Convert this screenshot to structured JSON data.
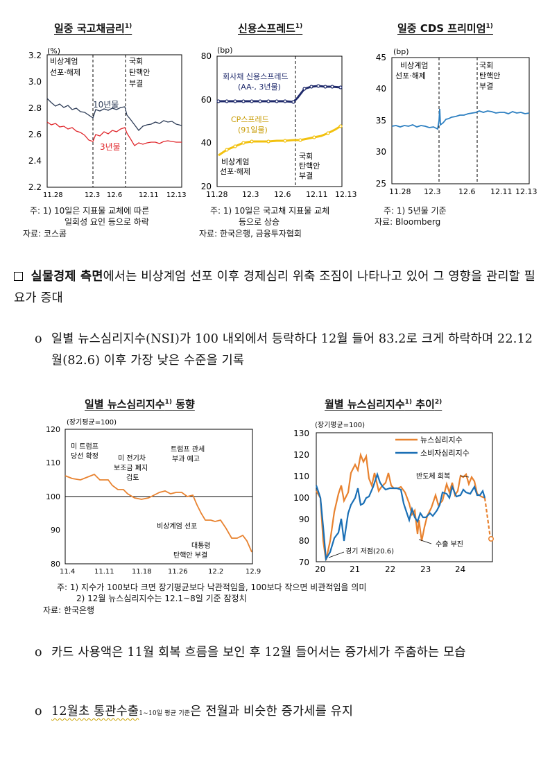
{
  "charts": {
    "bond": {
      "title": "일중 국고채금리",
      "title_sup": "1)",
      "unit": "(%)",
      "yticks": [
        "3.2",
        "3.0",
        "2.8",
        "2.6",
        "2.4",
        "2.2"
      ],
      "xticks": [
        "11.28",
        "12.3",
        "12.6",
        "12.11",
        "12.13"
      ],
      "ann_left": [
        "비상계엄",
        "선포·해제"
      ],
      "ann_right": [
        "국회",
        "탄핵안",
        "부결"
      ],
      "series_labels": [
        "10년물",
        "3년물"
      ],
      "notes": [
        "주: 1) 10일은 지표물 교체에 따른",
        "일회성 요인 등으로 하락",
        "자료: 코스콤"
      ]
    },
    "credit": {
      "title": "신용스프레드",
      "title_sup": "1)",
      "unit": "(bp)",
      "yticks": [
        "80",
        "60",
        "40",
        "20"
      ],
      "xticks": [
        "11.28",
        "12.3",
        "12.6",
        "12.11",
        "12.13"
      ],
      "series_labels": [
        "회사채 신용스프레드",
        "(AA-, 3년물)",
        "CP스프레드",
        "(91일물)"
      ],
      "ann_left": [
        "비상계엄",
        "선포·해제"
      ],
      "ann_right": [
        "국회",
        "탄핵안",
        "부결"
      ],
      "notes": [
        "주: 1) 10일은 국고채 지표물 교체",
        "등으로 상승",
        "자료: 한국은행, 금융투자협회"
      ]
    },
    "cds": {
      "title": "일중 CDS 프리미엄",
      "title_sup": "1)",
      "unit": "(bp)",
      "yticks": [
        "45",
        "40",
        "35",
        "30",
        "25"
      ],
      "xticks": [
        "11.28",
        "12.3",
        "12.6",
        "12.11",
        "12.13"
      ],
      "ann_left": [
        "비상계엄",
        "선포·해제"
      ],
      "ann_right": [
        "국회",
        "탄핵안",
        "부결"
      ],
      "notes": [
        "주: 1) 5년물 기준",
        "자료: Bloomberg"
      ]
    },
    "nsi_daily": {
      "title": "일별 뉴스심리지수",
      "title_sup": "1)",
      "title_tail": " 동향",
      "unit": "(장기평균=100)",
      "yticks": [
        "120",
        "110",
        "100",
        "90",
        "80"
      ],
      "xticks": [
        "11.4",
        "11.11",
        "11.18",
        "11.26",
        "12.2",
        "12.9"
      ],
      "annotations": [
        "미 트럼프",
        "당선 확정",
        "미 전기차",
        "보조금 폐지",
        "검토",
        "트럼프 관세",
        "부과 예고",
        "비상계엄 선포",
        "대통령",
        "탄핵안 부결"
      ]
    },
    "nsi_monthly": {
      "title": "월별 뉴스심리지수",
      "title_sup": "1)",
      "title_tail": " 추이",
      "title_sup2": "2)",
      "unit": "(장기평균=100)",
      "yticks": [
        "130",
        "120",
        "110",
        "100",
        "90",
        "80",
        "70"
      ],
      "xticks": [
        "20",
        "21",
        "22",
        "23",
        "24"
      ],
      "legend": [
        "뉴스심리지수",
        "소비자심리지수"
      ],
      "annotations": [
        "반도체 회복",
        "수출 부진",
        "경기 저점(20.6)"
      ]
    }
  },
  "chart_data": [
    {
      "type": "line",
      "title": "일중 국고채금리",
      "ylabel": "(%)",
      "ylim": [
        2.2,
        3.2
      ],
      "categories": [
        "11.28",
        "12.3",
        "12.6",
        "12.11",
        "12.13"
      ],
      "series": [
        {
          "name": "10년물",
          "values": [
            2.84,
            2.78,
            2.74,
            2.72,
            2.7
          ]
        },
        {
          "name": "3년물",
          "values": [
            2.66,
            2.58,
            2.6,
            2.56,
            2.55
          ]
        }
      ]
    },
    {
      "type": "line",
      "title": "신용스프레드",
      "ylabel": "(bp)",
      "ylim": [
        20,
        80
      ],
      "categories": [
        "11.28",
        "12.3",
        "12.6",
        "12.11",
        "12.13"
      ],
      "series": [
        {
          "name": "회사채 신용스프레드 (AA-, 3년물)",
          "values": [
            59,
            59,
            59,
            65,
            65
          ]
        },
        {
          "name": "CP스프레드 (91일물)",
          "values": [
            34,
            40,
            41,
            42,
            47
          ]
        }
      ]
    },
    {
      "type": "line",
      "title": "일중 CDS 프리미엄",
      "ylabel": "(bp)",
      "ylim": [
        25,
        45
      ],
      "categories": [
        "11.28",
        "12.3",
        "12.6",
        "12.11",
        "12.13"
      ],
      "series": [
        {
          "values": [
            34.0,
            34.3,
            35.8,
            36.3,
            35.9
          ]
        }
      ]
    },
    {
      "type": "line",
      "title": "일별 뉴스심리지수 동향",
      "ylabel": "(장기평균=100)",
      "ylim": [
        80,
        120
      ],
      "categories": [
        "11.4",
        "11.11",
        "11.18",
        "11.26",
        "12.2",
        "12.9"
      ],
      "series": [
        {
          "values": [
            106,
            104,
            101,
            100,
            95,
            83
          ]
        }
      ]
    },
    {
      "type": "line",
      "title": "월별 뉴스심리지수 추이",
      "ylabel": "(장기평균=100)",
      "ylim": [
        70,
        130
      ],
      "categories": [
        "20",
        "21",
        "22",
        "23",
        "24"
      ],
      "series": [
        {
          "name": "뉴스심리지수",
          "values": [
            100,
            108,
            104,
            95,
            102
          ]
        },
        {
          "name": "소비자심리지수",
          "values": [
            98,
            100,
            103,
            90,
            101
          ]
        }
      ]
    }
  ],
  "text": {
    "para1_head": "실물경제 측면",
    "para1_rest": "에서는 비상계엄 선포 이후 경제심리 위축 조짐이 나타나고 있어 그 영향을 관리할 필요가 증대",
    "bullet": "o",
    "para2": "일별 뉴스심리지수(NSI)가 100 내외에서 등락하다 12월 들어 83.2로 크게 하락하며 22.12월(82.6) 이후 가장 낮은 수준을 기록",
    "para3": "카드 사용액은 11월 회복 흐름을 보인 후 12월 들어서는 증가세가 주춤하는 모습",
    "para4_main": "12월초 통관수출",
    "para4_small": "1~10일 평균 기준",
    "para4_rest": "은 전월과 비슷한 증가세를 유지"
  },
  "footnotes": {
    "line1": "주: 1) 지수가 100보다 크면 장기평균보다 낙관적임을, 100보다 작으면 비관적임을 의미",
    "line2": "2) 12월 뉴스심리지수는 12.1~8일 기준 잠정치",
    "source": "자료: 한국은행"
  },
  "colors": {
    "bond10": "#2b3a55",
    "bond3": "#e0262b",
    "credit_corp": "#1f2a6b",
    "cp": "#f2c10f",
    "cds": "#2c7fc1",
    "nsi": "#e8822f",
    "csi": "#1a6fb5"
  }
}
